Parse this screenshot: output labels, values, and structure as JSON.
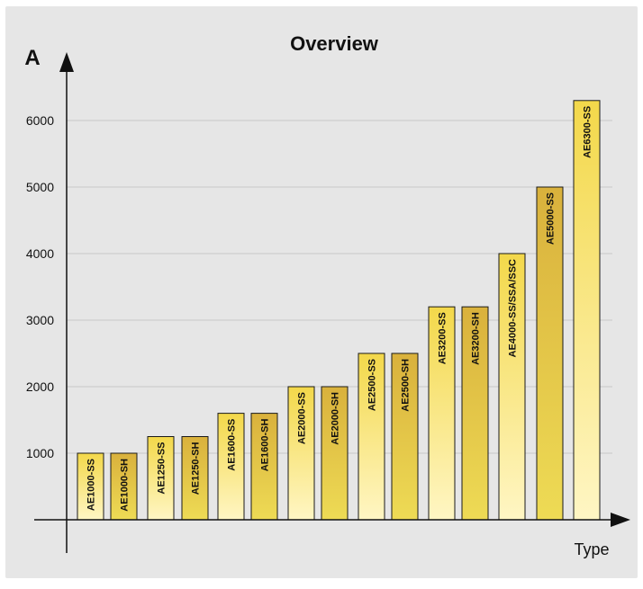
{
  "chart_data": {
    "type": "bar",
    "title": "Overview",
    "ylabel": "A",
    "xlabel": "Type",
    "ylim": [
      0,
      6800
    ],
    "yticks": [
      1000,
      2000,
      3000,
      4000,
      5000,
      6000
    ],
    "grid": true,
    "legend": "none",
    "colors": {
      "background": "#e6e6e6",
      "grid": "#c8c8c8",
      "axis": "#111111",
      "bar_light_top": "#f3d84a",
      "bar_light_bottom": "#fff6c4",
      "bar_dark_top": "#d9b13c",
      "bar_dark_bottom": "#eedb55"
    },
    "categories": [
      "AE1000-SS",
      "AE1000-SH",
      "AE1250-SS",
      "AE1250-SH",
      "AE1600-SS",
      "AE1600-SH",
      "AE2000-SS",
      "AE2000-SH",
      "AE2500-SS",
      "AE2500-SH",
      "AE3200-SS",
      "AE3200-SH",
      "AE4000-SS/SSA/SSC",
      "AE5000-SS",
      "AE6300-SS"
    ],
    "values": [
      1000,
      1000,
      1250,
      1250,
      1600,
      1600,
      2000,
      2000,
      2500,
      2500,
      3200,
      3200,
      4000,
      5000,
      6300
    ]
  }
}
